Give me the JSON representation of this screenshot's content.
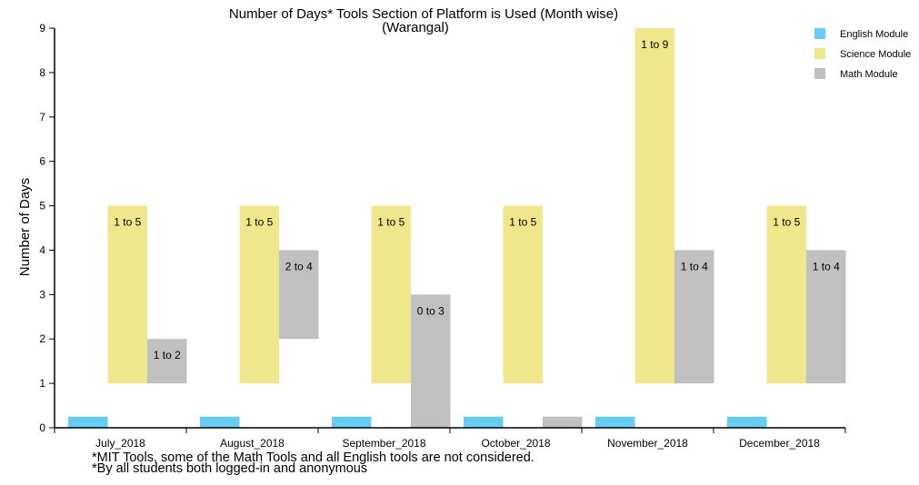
{
  "chart_data": {
    "type": "bar",
    "title": "Number of Days* Tools Section of Platform is Used (Month wise)",
    "subtitle": "(Warangal)",
    "ylabel": "Number of Days",
    "xlabel": "",
    "ylim": [
      0,
      9
    ],
    "yticks": [
      0,
      1,
      2,
      3,
      4,
      5,
      6,
      7,
      8,
      9
    ],
    "categories": [
      "July_2018",
      "August_2018",
      "September_2018",
      "October_2018",
      "November_2018",
      "December_2018"
    ],
    "legend_position": "top-right",
    "series": [
      {
        "name": "English Module",
        "color": "#66ccf2",
        "ranges": [
          [
            0,
            0.25
          ],
          [
            0,
            0.25
          ],
          [
            0,
            0.25
          ],
          [
            0,
            0.25
          ],
          [
            0,
            0.25
          ],
          [
            0,
            0.25
          ]
        ],
        "labels": [
          "",
          "",
          "",
          "",
          "",
          ""
        ]
      },
      {
        "name": "Science Module",
        "color": "#f0e68c",
        "ranges": [
          [
            1,
            5
          ],
          [
            1,
            5
          ],
          [
            1,
            5
          ],
          [
            1,
            5
          ],
          [
            1,
            9
          ],
          [
            1,
            5
          ]
        ],
        "labels": [
          "1 to 5",
          "1 to 5",
          "1 to 5",
          "1 to 5",
          "1 to 9",
          "1 to 5"
        ]
      },
      {
        "name": "Math Module",
        "color": "#c0c0c0",
        "ranges": [
          [
            1,
            2
          ],
          [
            2,
            4
          ],
          [
            0,
            3
          ],
          [
            0,
            0.25
          ],
          [
            1,
            4
          ],
          [
            1,
            4
          ]
        ],
        "labels": [
          "1 to 2",
          "2 to 4",
          "0 to 3",
          "",
          "1 to 4",
          "1 to 4"
        ]
      }
    ]
  },
  "footnotes": [
    "*MIT Tools, some of the Math Tools and all English tools are not considered.",
    "*By all students both logged-in and anonymous"
  ]
}
